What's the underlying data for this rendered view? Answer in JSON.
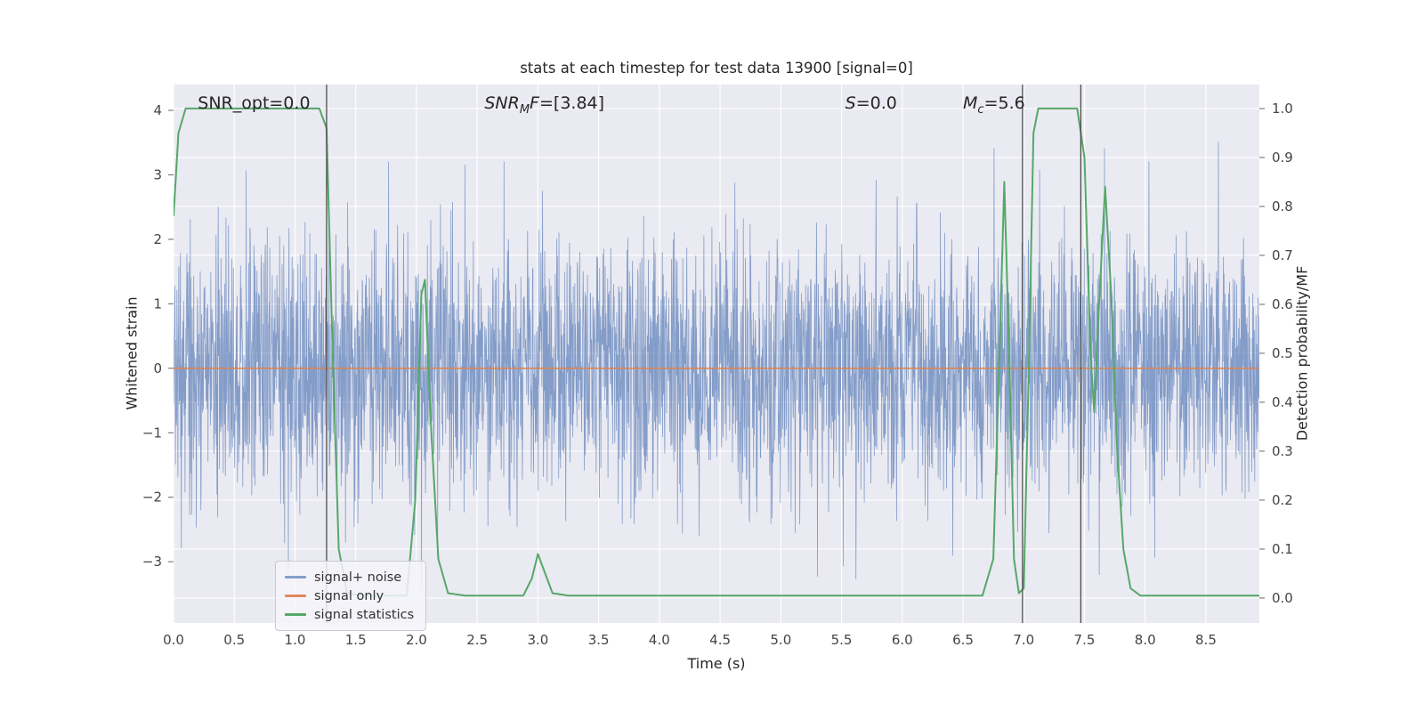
{
  "chart_data": {
    "type": "line",
    "title": "stats at each timestep for test data 13900 [signal=0]",
    "xlabel": "Time (s)",
    "ylabel_left": "Whitened strain",
    "ylabel_right": "Detection probability/MF",
    "xlim": [
      0,
      8.94
    ],
    "ylim_left": [
      -3.95,
      4.4
    ],
    "ylim_right": [
      -0.051,
      1.049
    ],
    "x_ticks": [
      0.0,
      0.5,
      1.0,
      1.5,
      2.0,
      2.5,
      3.0,
      3.5,
      4.0,
      4.5,
      5.0,
      5.5,
      6.0,
      6.5,
      7.0,
      7.5,
      8.0,
      8.5
    ],
    "y_ticks_left": [
      -3,
      -2,
      -1,
      0,
      1,
      2,
      3,
      4
    ],
    "y_ticks_right": [
      0.0,
      0.1,
      0.2,
      0.3,
      0.4,
      0.5,
      0.6,
      0.7,
      0.8,
      0.9,
      1.0
    ],
    "grid": {
      "enabled": true,
      "color": "#ffffff"
    },
    "colors": {
      "axes_background": "#eaeaf2",
      "grid": "#ffffff",
      "tick_label": "#444444",
      "vline": "#4d4d4d"
    },
    "series": [
      {
        "name": "signal+ noise",
        "kind": "gaussian-noise",
        "axis": "left",
        "color": "#4C72B0",
        "opacity": 0.65,
        "mean": 0,
        "std": 1.0,
        "n": 3500,
        "seed": 20
      },
      {
        "name": "signal only",
        "kind": "constant",
        "axis": "left",
        "color": "#DD8452",
        "opacity": 0.95,
        "value": 0.0
      },
      {
        "name": "signal statistics",
        "kind": "points",
        "axis": "right",
        "color": "#55A868",
        "opacity": 1,
        "points": [
          [
            0.0,
            0.78
          ],
          [
            0.04,
            0.95
          ],
          [
            0.1,
            1.0
          ],
          [
            1.2,
            1.0
          ],
          [
            1.26,
            0.96
          ],
          [
            1.31,
            0.5
          ],
          [
            1.36,
            0.1
          ],
          [
            1.43,
            0.01
          ],
          [
            1.55,
            0.005
          ],
          [
            1.92,
            0.005
          ],
          [
            1.99,
            0.2
          ],
          [
            2.04,
            0.62
          ],
          [
            2.07,
            0.65
          ],
          [
            2.12,
            0.35
          ],
          [
            2.18,
            0.08
          ],
          [
            2.26,
            0.01
          ],
          [
            2.4,
            0.005
          ],
          [
            2.88,
            0.005
          ],
          [
            2.95,
            0.04
          ],
          [
            3.0,
            0.09
          ],
          [
            3.06,
            0.05
          ],
          [
            3.12,
            0.01
          ],
          [
            3.25,
            0.005
          ],
          [
            6.66,
            0.005
          ],
          [
            6.75,
            0.08
          ],
          [
            6.8,
            0.5
          ],
          [
            6.84,
            0.85
          ],
          [
            6.88,
            0.5
          ],
          [
            6.92,
            0.08
          ],
          [
            6.96,
            0.01
          ],
          [
            7.0,
            0.02
          ],
          [
            7.04,
            0.45
          ],
          [
            7.08,
            0.95
          ],
          [
            7.12,
            1.0
          ],
          [
            7.44,
            1.0
          ],
          [
            7.5,
            0.9
          ],
          [
            7.55,
            0.5
          ],
          [
            7.58,
            0.38
          ],
          [
            7.62,
            0.6
          ],
          [
            7.67,
            0.84
          ],
          [
            7.72,
            0.62
          ],
          [
            7.77,
            0.3
          ],
          [
            7.82,
            0.1
          ],
          [
            7.88,
            0.02
          ],
          [
            7.96,
            0.005
          ],
          [
            8.94,
            0.005
          ]
        ]
      }
    ],
    "vlines": {
      "x": [
        1.26,
        6.99,
        7.47
      ],
      "color": "#4d4d4d"
    },
    "annotations": [
      {
        "id": "snr-opt",
        "x": 0.2,
        "y": 4.1,
        "parts": [
          {
            "t": "SNR_opt=0.0",
            "s": "n"
          }
        ]
      },
      {
        "id": "snr-mf",
        "x": 2.56,
        "y": 4.1,
        "parts": [
          {
            "t": "SNR",
            "s": "i"
          },
          {
            "t": "M",
            "s": "sub"
          },
          {
            "t": "F",
            "s": "i"
          },
          {
            "t": "=[3.84]",
            "s": "n"
          }
        ]
      },
      {
        "id": "s",
        "x": 5.53,
        "y": 4.1,
        "parts": [
          {
            "t": "S",
            "s": "i"
          },
          {
            "t": "=0.0",
            "s": "n"
          }
        ]
      },
      {
        "id": "mc",
        "x": 6.5,
        "y": 4.1,
        "parts": [
          {
            "t": "M",
            "s": "i"
          },
          {
            "t": "c",
            "s": "sub"
          },
          {
            "t": "=5.6",
            "s": "n"
          }
        ]
      }
    ],
    "legend": {
      "position": "lower-left"
    }
  }
}
